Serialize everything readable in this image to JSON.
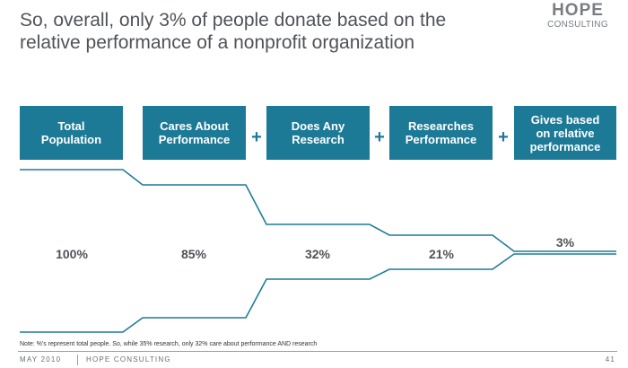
{
  "title": {
    "line1": "So, overall, only 3% of people donate based on the",
    "line2": "relative performance of a nonprofit organization"
  },
  "logo": {
    "line1": "HOPE",
    "line2": "CONSULTING"
  },
  "stages": [
    {
      "label_lines": [
        "Total",
        "Population"
      ],
      "percent": "100%"
    },
    {
      "label_lines": [
        "Cares About",
        "Performance"
      ],
      "percent": "85%"
    },
    {
      "label_lines": [
        "Does Any",
        "Research"
      ],
      "percent": "32%"
    },
    {
      "label_lines": [
        "Researches",
        "Performance"
      ],
      "percent": "21%"
    },
    {
      "label_lines": [
        "Gives based",
        "on relative",
        "performance"
      ],
      "percent": "3%"
    }
  ],
  "operator": "+",
  "colors": {
    "box": "#1d7a97",
    "funnel_line": "#1d7a97",
    "text": "#4f5358"
  },
  "note": "Note: %'s represent total people. So, while 35% research, only 32% care about performance AND research",
  "footer": {
    "date": "MAY 2010",
    "company": "HOPE CONSULTING",
    "page": "41"
  }
}
